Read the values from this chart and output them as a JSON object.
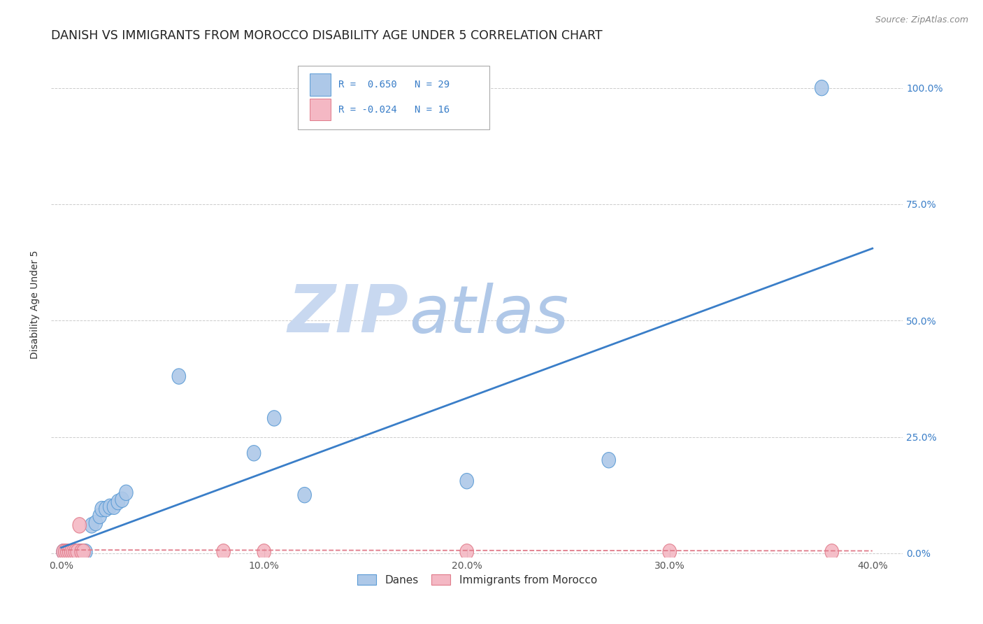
{
  "title": "DANISH VS IMMIGRANTS FROM MOROCCO DISABILITY AGE UNDER 5 CORRELATION CHART",
  "source": "Source: ZipAtlas.com",
  "ylabel": "Disability Age Under 5",
  "xlabel": "",
  "xlim": [
    -0.005,
    0.415
  ],
  "ylim": [
    -0.01,
    1.08
  ],
  "xticks": [
    0.0,
    0.1,
    0.2,
    0.3,
    0.4
  ],
  "xticklabels": [
    "0.0%",
    "10.0%",
    "20.0%",
    "30.0%",
    "40.0%"
  ],
  "yticks": [
    0.0,
    0.25,
    0.5,
    0.75,
    1.0
  ],
  "yticklabels": [
    "0.0%",
    "25.0%",
    "50.0%",
    "75.0%",
    "100.0%"
  ],
  "danes_R": 0.65,
  "danes_N": 29,
  "morocco_R": -0.024,
  "morocco_N": 16,
  "danes_color": "#adc8e8",
  "danes_edge_color": "#5b9bd5",
  "morocco_color": "#f4b8c4",
  "morocco_edge_color": "#e07b8a",
  "line_danes_color": "#3a7ec8",
  "line_morocco_color": "#e07b8a",
  "background_color": "#ffffff",
  "grid_color": "#cccccc",
  "title_fontsize": 12.5,
  "label_fontsize": 10,
  "tick_fontsize": 10,
  "danes_x": [
    0.001,
    0.002,
    0.003,
    0.004,
    0.005,
    0.006,
    0.007,
    0.008,
    0.009,
    0.01,
    0.011,
    0.012,
    0.015,
    0.017,
    0.019,
    0.02,
    0.022,
    0.024,
    0.026,
    0.028,
    0.03,
    0.032,
    0.058,
    0.095,
    0.105,
    0.12,
    0.2,
    0.27,
    0.375
  ],
  "danes_y": [
    0.003,
    0.003,
    0.003,
    0.003,
    0.003,
    0.003,
    0.003,
    0.003,
    0.003,
    0.003,
    0.003,
    0.003,
    0.06,
    0.065,
    0.08,
    0.095,
    0.095,
    0.1,
    0.1,
    0.11,
    0.115,
    0.13,
    0.38,
    0.215,
    0.29,
    0.125,
    0.155,
    0.2,
    1.0
  ],
  "morocco_x": [
    0.001,
    0.002,
    0.003,
    0.004,
    0.005,
    0.006,
    0.007,
    0.008,
    0.009,
    0.01,
    0.011,
    0.08,
    0.1,
    0.2,
    0.3,
    0.38
  ],
  "morocco_y": [
    0.003,
    0.003,
    0.003,
    0.003,
    0.003,
    0.003,
    0.003,
    0.003,
    0.06,
    0.003,
    0.003,
    0.003,
    0.003,
    0.003,
    0.003,
    0.003
  ],
  "line_danes_x0": 0.0,
  "line_danes_y0": 0.012,
  "line_danes_x1": 0.4,
  "line_danes_y1": 0.655,
  "line_morocco_x0": 0.0,
  "line_morocco_x1": 0.4,
  "line_morocco_y0": 0.007,
  "line_morocco_y1": 0.005,
  "watermark_text1": "ZIP",
  "watermark_text2": "atlas",
  "watermark_color1": "#c8d8f0",
  "watermark_color2": "#b0c8e8",
  "watermark_fontsize": 68
}
